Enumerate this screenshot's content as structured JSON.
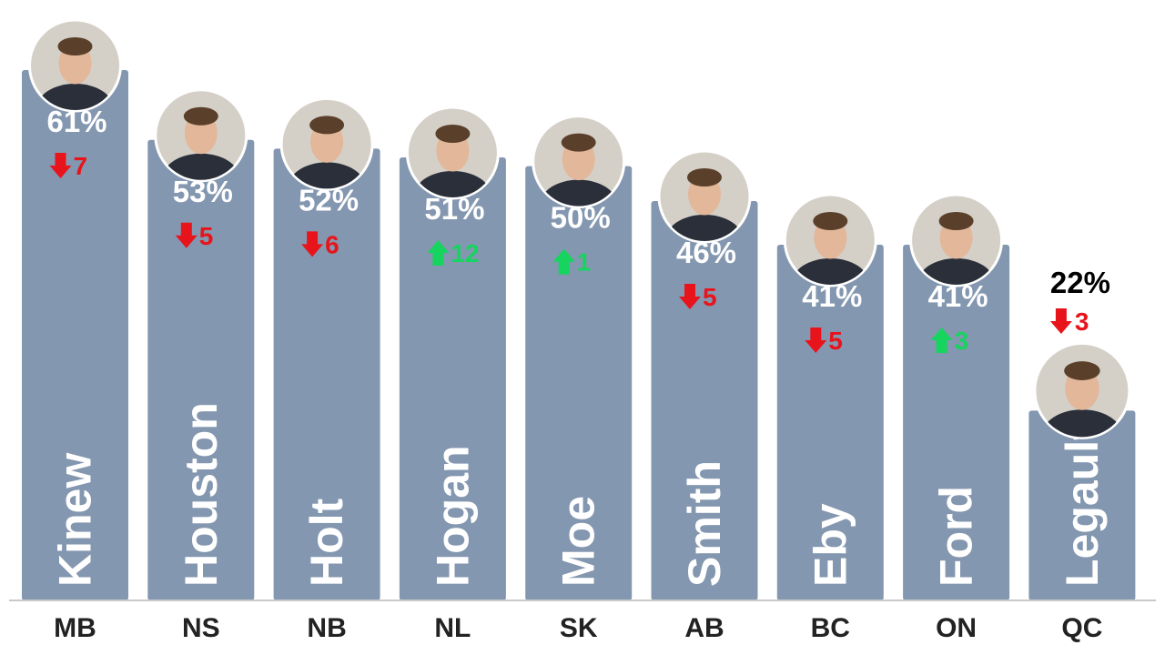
{
  "chart_data": {
    "type": "bar",
    "categories": [
      "MB",
      "NS",
      "NB",
      "NL",
      "SK",
      "AB",
      "BC",
      "ON",
      "QC"
    ],
    "premiers": [
      "Kinew",
      "Houston",
      "Holt",
      "Hogan",
      "Moe",
      "Smith",
      "Eby",
      "Ford",
      "Legault"
    ],
    "values": [
      61,
      53,
      52,
      51,
      50,
      46,
      41,
      41,
      22
    ],
    "value_labels": [
      "61%",
      "53%",
      "52%",
      "51%",
      "50%",
      "46%",
      "41%",
      "41%",
      "22%"
    ],
    "changes": [
      {
        "direction": "down",
        "value": "7"
      },
      {
        "direction": "down",
        "value": "5"
      },
      {
        "direction": "down",
        "value": "6"
      },
      {
        "direction": "up",
        "value": "12"
      },
      {
        "direction": "up",
        "value": "1"
      },
      {
        "direction": "down",
        "value": "5"
      },
      {
        "direction": "down",
        "value": "5"
      },
      {
        "direction": "up",
        "value": "3"
      },
      {
        "direction": "down",
        "value": "3"
      }
    ],
    "ylim": [
      0,
      100
    ],
    "grid": false,
    "bar_color": "#8497b0",
    "down_color": "#e8141b",
    "up_color": "#16d45e",
    "icons": {
      "down": "down-arrow-icon",
      "up": "up-arrow-icon",
      "photo": "premier-photo"
    }
  }
}
